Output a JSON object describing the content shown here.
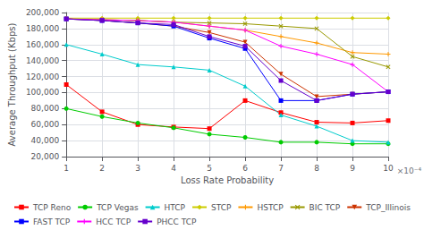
{
  "chart_data": {
    "type": "line",
    "xlabel": "Loss Rate Probability",
    "ylabel": "Average Throughput (Kbps)",
    "annotation": "×10⁻⁴",
    "x": [
      1,
      2,
      3,
      4,
      5,
      6,
      7,
      8,
      9,
      10
    ],
    "series": [
      {
        "name": "TCP Reno",
        "color": "#ff0000",
        "marker": "square",
        "values": [
          110000,
          76000,
          60000,
          57000,
          55000,
          90000,
          75000,
          63000,
          62000,
          65000
        ]
      },
      {
        "name": "TCP Vegas",
        "color": "#00cc00",
        "marker": "circle",
        "values": [
          80000,
          70000,
          62000,
          56000,
          48000,
          44000,
          38000,
          38000,
          36000,
          36000
        ]
      },
      {
        "name": "HTCP",
        "color": "#00cccc",
        "marker": "triangle-up",
        "values": [
          160000,
          148000,
          135000,
          132000,
          128000,
          108000,
          72000,
          58000,
          40000,
          38000
        ]
      },
      {
        "name": "STCP",
        "color": "#cccc00",
        "marker": "diamond",
        "values": [
          193000,
          193000,
          193000,
          193000,
          193000,
          193000,
          193000,
          193000,
          193000,
          193000
        ]
      },
      {
        "name": "HSTCP",
        "color": "#ff9900",
        "marker": "plus",
        "values": [
          192000,
          191000,
          190000,
          188000,
          183000,
          178000,
          170000,
          162000,
          150000,
          148000
        ]
      },
      {
        "name": "BIC TCP",
        "color": "#999900",
        "marker": "x",
        "values": [
          192000,
          191000,
          190000,
          188000,
          187000,
          186000,
          183000,
          180000,
          145000,
          132000
        ]
      },
      {
        "name": "TCP_Illinois",
        "color": "#cc3300",
        "marker": "triangle-down",
        "values": [
          192000,
          190000,
          187000,
          183000,
          175000,
          163000,
          123000,
          95000,
          98000,
          101000
        ]
      },
      {
        "name": "FAST TCP",
        "color": "#0000ff",
        "marker": "square",
        "values": [
          192000,
          190000,
          187000,
          183000,
          168000,
          155000,
          90000,
          90000,
          98000,
          101000
        ]
      },
      {
        "name": "HCC TCP",
        "color": "#ff00ff",
        "marker": "plus",
        "values": [
          192000,
          191000,
          190000,
          188000,
          183000,
          178000,
          158000,
          148000,
          135000,
          101000
        ]
      },
      {
        "name": "PHCC TCP",
        "color": "#6600cc",
        "marker": "square",
        "values": [
          192000,
          190000,
          187000,
          185000,
          170000,
          158000,
          115000,
          90000,
          98000,
          101000
        ]
      }
    ],
    "xlim": [
      1,
      10
    ],
    "xticks": [
      1,
      2,
      3,
      4,
      5,
      6,
      7,
      8,
      9,
      10
    ],
    "ylim": [
      20000,
      200000
    ],
    "yticks": [
      {
        "value": 20000,
        "label": "20,000"
      },
      {
        "value": 40000,
        "label": "40,000"
      },
      {
        "value": 60000,
        "label": "60,000"
      },
      {
        "value": 80000,
        "label": "80,000"
      },
      {
        "value": 100000,
        "label": "100,000"
      },
      {
        "value": 120000,
        "label": "120,000"
      },
      {
        "value": 140000,
        "label": "140,000"
      },
      {
        "value": 160000,
        "label": "160,000"
      },
      {
        "value": 180000,
        "label": "180,000"
      },
      {
        "value": 200000,
        "label": "200,000"
      }
    ],
    "grid": true,
    "legend": "bottom"
  }
}
